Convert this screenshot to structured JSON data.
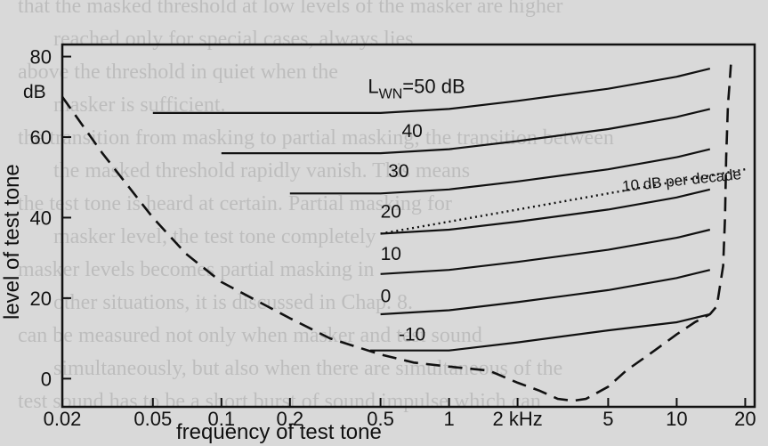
{
  "page": {
    "background_color": "#d9d9d9",
    "ink_color": "#111111",
    "bleed_color": "#5f5f5f",
    "bleed_text": [
      "that the masked threshold at low levels of the masker are higher",
      "reached only for special cases, always lies",
      "above the threshold in quiet when the",
      "masker is sufficient.",
      "the transition from masking to partial masking; the transition between",
      "the masked threshold rapidly vanish. This means",
      "the test tone is heard at certain. Partial masking for",
      "masker level, the test tone completely",
      "masker levels becomes partial masking in",
      "other situations, it is discussed in Chap. 8.",
      "can be measured not only when masker and test sound",
      "simultaneously, but also when there are simultaneous of the",
      "test sound has to be a short burst of sound impulse which can"
    ]
  },
  "chart_data": {
    "type": "line",
    "title": "",
    "xlabel": "frequency of test tone",
    "ylabel": "level of test tone",
    "x_scale": "log",
    "xlim": [
      0.02,
      22
    ],
    "ylim": [
      -7,
      83
    ],
    "x_ticks": [
      {
        "value": 0.02,
        "label": "0.02"
      },
      {
        "value": 0.05,
        "label": "0.05"
      },
      {
        "value": 0.1,
        "label": "0.1"
      },
      {
        "value": 0.2,
        "label": "0.2"
      },
      {
        "value": 0.5,
        "label": "0.5"
      },
      {
        "value": 1,
        "label": "1"
      },
      {
        "value": 2,
        "label": "2 kHz"
      },
      {
        "value": 5,
        "label": "5"
      },
      {
        "value": 10,
        "label": "10"
      },
      {
        "value": 20,
        "label": "20"
      }
    ],
    "y_ticks": [
      {
        "value": 0,
        "label": "0"
      },
      {
        "value": 20,
        "label": "20"
      },
      {
        "value": 40,
        "label": "40"
      },
      {
        "value": 60,
        "label": "60"
      },
      {
        "value": 80,
        "label": "80"
      }
    ],
    "y_unit": "dB",
    "grid": false,
    "series": [
      {
        "name": "50 dB",
        "style": "solid",
        "x": [
          0.05,
          0.1,
          0.2,
          0.5,
          1,
          2,
          5,
          10,
          14
        ],
        "y": [
          66,
          66,
          66,
          66,
          67,
          69,
          72,
          75,
          77
        ]
      },
      {
        "name": "40",
        "style": "solid",
        "x": [
          0.1,
          0.2,
          0.5,
          1,
          2,
          5,
          10,
          14
        ],
        "y": [
          56,
          56,
          56,
          57,
          59,
          62,
          65,
          67
        ]
      },
      {
        "name": "30",
        "style": "solid",
        "x": [
          0.2,
          0.5,
          1,
          2,
          5,
          10,
          14
        ],
        "y": [
          46,
          46,
          47,
          49,
          52,
          55,
          57
        ]
      },
      {
        "name": "20",
        "style": "solid",
        "x": [
          0.5,
          1,
          2,
          5,
          10,
          14
        ],
        "y": [
          36,
          37,
          39,
          42,
          45,
          47
        ]
      },
      {
        "name": "10",
        "style": "solid",
        "x": [
          0.5,
          1,
          2,
          5,
          10,
          14
        ],
        "y": [
          26,
          27,
          29,
          32,
          35,
          37
        ]
      },
      {
        "name": "0",
        "style": "solid",
        "x": [
          0.5,
          1,
          2,
          5,
          10,
          14
        ],
        "y": [
          16,
          17,
          19,
          22,
          25,
          27
        ]
      },
      {
        "name": "-10",
        "style": "solid",
        "x": [
          0.45,
          1,
          2,
          5,
          10,
          14
        ],
        "y": [
          7,
          7,
          9,
          12,
          14,
          16
        ]
      },
      {
        "name": "threshold in quiet",
        "style": "dashed",
        "x": [
          0.02,
          0.03,
          0.05,
          0.07,
          0.1,
          0.2,
          0.3,
          0.5,
          0.7,
          1,
          1.5,
          2,
          2.5,
          3,
          3.5,
          4,
          5,
          6,
          8,
          10,
          12,
          14,
          15,
          16,
          16.3,
          16.5,
          16.8,
          17,
          17.3
        ],
        "y": [
          70,
          56,
          40,
          31,
          24,
          15,
          10,
          6,
          4,
          3,
          2,
          -1,
          -3,
          -5,
          -5.5,
          -5,
          -2,
          2,
          7,
          11,
          14,
          16,
          18,
          28,
          40,
          55,
          68,
          72,
          78
        ]
      },
      {
        "name": "10 dB per decade",
        "style": "dotted",
        "x": [
          0.5,
          1,
          2,
          5,
          10,
          20
        ],
        "y": [
          36,
          39,
          42,
          46,
          49,
          52
        ]
      }
    ],
    "annotations": [
      {
        "text_parts": [
          "L",
          "WN",
          "=50 dB"
        ],
        "x": 0.44,
        "y": 71
      },
      {
        "text": "40",
        "x": 0.62,
        "y": 60
      },
      {
        "text": "30",
        "x": 0.54,
        "y": 50
      },
      {
        "text": "20",
        "x": 0.5,
        "y": 40
      },
      {
        "text": "10",
        "x": 0.5,
        "y": 29.5
      },
      {
        "text": "0",
        "x": 0.5,
        "y": 19
      },
      {
        "text": "-10",
        "x": 0.6,
        "y": 9.5
      },
      {
        "text": "10 dB per decade",
        "x": 5.8,
        "y": 46.5
      }
    ]
  }
}
